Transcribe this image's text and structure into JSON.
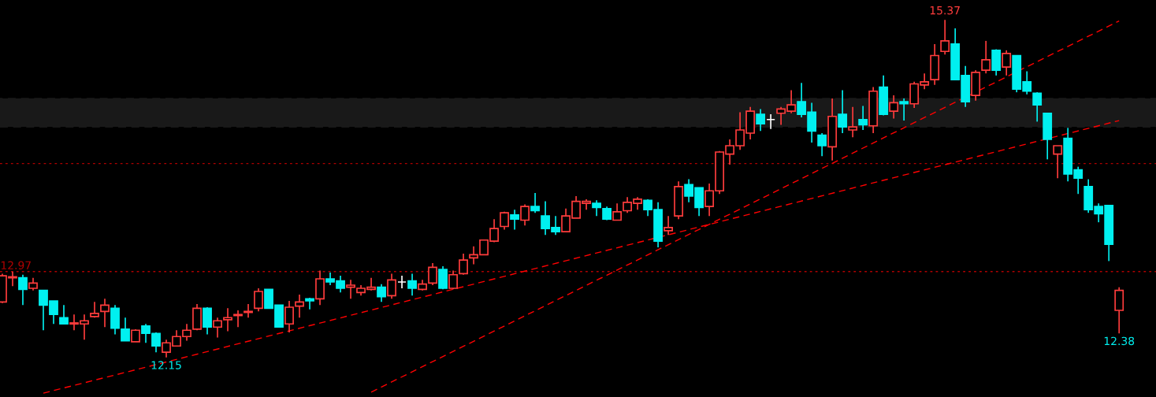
{
  "chart_data": {
    "type": "candlestick",
    "categories": [
      null,
      null,
      null,
      null,
      null,
      null,
      null,
      null,
      null,
      null,
      null,
      null,
      null,
      null,
      null,
      null,
      null,
      null,
      null,
      null,
      null,
      null,
      null,
      null,
      null,
      null,
      null,
      null,
      null,
      null,
      null,
      null,
      null,
      null,
      null,
      null,
      null,
      null,
      null,
      null,
      null,
      null,
      null,
      null,
      null,
      null,
      null,
      null,
      null,
      null,
      null,
      null,
      null,
      null,
      null,
      null,
      null,
      null,
      null,
      null,
      null,
      null,
      null,
      null,
      null,
      null,
      null,
      null,
      null,
      null,
      null,
      null,
      null,
      null,
      null,
      null,
      null,
      null,
      null,
      null,
      null,
      null,
      null,
      null,
      null,
      null,
      null,
      null,
      null,
      null,
      null,
      null,
      null,
      null,
      null,
      null,
      null,
      null,
      null,
      null,
      null,
      null,
      null,
      null,
      null,
      null,
      null,
      null,
      null,
      null
    ],
    "ohlc": [
      [
        12.68,
        12.95,
        12.67,
        12.93
      ],
      [
        12.91,
        12.97,
        12.83,
        12.92
      ],
      [
        12.91,
        12.94,
        12.65,
        12.8
      ],
      [
        12.81,
        12.91,
        12.79,
        12.86
      ],
      [
        12.79,
        12.79,
        12.41,
        12.65
      ],
      [
        12.69,
        12.69,
        12.47,
        12.56
      ],
      [
        12.53,
        12.65,
        12.47,
        12.47
      ],
      [
        12.47,
        12.56,
        12.41,
        12.48
      ],
      [
        12.47,
        12.56,
        12.32,
        12.5
      ],
      [
        12.54,
        12.68,
        12.53,
        12.57
      ],
      [
        12.59,
        12.71,
        12.44,
        12.65
      ],
      [
        12.62,
        12.65,
        12.37,
        12.43
      ],
      [
        12.42,
        12.53,
        12.31,
        12.31
      ],
      [
        12.3,
        12.42,
        12.3,
        12.41
      ],
      [
        12.45,
        12.47,
        12.29,
        12.38
      ],
      [
        12.38,
        12.39,
        12.2,
        12.26
      ],
      [
        12.2,
        12.32,
        12.15,
        12.29
      ],
      [
        12.26,
        12.41,
        12.26,
        12.35
      ],
      [
        12.35,
        12.47,
        12.31,
        12.41
      ],
      [
        12.42,
        12.66,
        12.41,
        12.62
      ],
      [
        12.62,
        12.63,
        12.37,
        12.44
      ],
      [
        12.44,
        12.53,
        12.34,
        12.5
      ],
      [
        12.51,
        12.62,
        12.4,
        12.53
      ],
      [
        12.55,
        12.6,
        12.44,
        12.56
      ],
      [
        12.58,
        12.66,
        12.53,
        12.59
      ],
      [
        12.62,
        12.81,
        12.59,
        12.78
      ],
      [
        12.8,
        12.8,
        12.62,
        12.62
      ],
      [
        12.65,
        12.65,
        12.44,
        12.44
      ],
      [
        12.47,
        12.69,
        12.39,
        12.63
      ],
      [
        12.64,
        12.75,
        12.53,
        12.68
      ],
      [
        12.71,
        12.72,
        12.61,
        12.69
      ],
      [
        12.71,
        12.98,
        12.65,
        12.9
      ],
      [
        12.9,
        12.96,
        12.84,
        12.87
      ],
      [
        12.88,
        12.93,
        12.77,
        12.81
      ],
      [
        12.82,
        12.89,
        12.71,
        12.84
      ],
      [
        12.77,
        12.84,
        12.74,
        12.81
      ],
      [
        12.8,
        12.91,
        12.79,
        12.82
      ],
      [
        12.82,
        12.85,
        12.68,
        12.73
      ],
      [
        12.74,
        12.95,
        12.71,
        12.89
      ],
      [
        12.87,
        12.93,
        12.81,
        12.87
      ],
      [
        12.88,
        12.95,
        12.74,
        12.81
      ],
      [
        12.8,
        12.89,
        12.79,
        12.85
      ],
      [
        12.86,
        13.05,
        12.84,
        13.01
      ],
      [
        12.99,
        13.02,
        12.8,
        12.81
      ],
      [
        12.81,
        12.98,
        12.8,
        12.94
      ],
      [
        12.95,
        13.14,
        12.94,
        13.08
      ],
      [
        13.1,
        13.21,
        13.04,
        13.13
      ],
      [
        13.13,
        13.27,
        13.13,
        13.27
      ],
      [
        13.26,
        13.47,
        13.25,
        13.38
      ],
      [
        13.4,
        13.54,
        13.37,
        13.53
      ],
      [
        13.51,
        13.56,
        13.37,
        13.47
      ],
      [
        13.46,
        13.61,
        13.41,
        13.59
      ],
      [
        13.59,
        13.72,
        13.53,
        13.55
      ],
      [
        13.5,
        13.64,
        13.32,
        13.38
      ],
      [
        13.39,
        13.5,
        13.32,
        13.35
      ],
      [
        13.35,
        13.57,
        13.35,
        13.5
      ],
      [
        13.48,
        13.69,
        13.48,
        13.64
      ],
      [
        13.62,
        13.66,
        13.56,
        13.64
      ],
      [
        13.62,
        13.65,
        13.5,
        13.58
      ],
      [
        13.57,
        13.59,
        13.46,
        13.47
      ],
      [
        13.46,
        13.62,
        13.46,
        13.54
      ],
      [
        13.55,
        13.68,
        13.53,
        13.63
      ],
      [
        13.62,
        13.68,
        13.56,
        13.66
      ],
      [
        13.65,
        13.66,
        13.5,
        13.56
      ],
      [
        13.56,
        13.63,
        13.2,
        13.26
      ],
      [
        13.36,
        13.5,
        13.32,
        13.39
      ],
      [
        13.5,
        13.83,
        13.47,
        13.78
      ],
      [
        13.8,
        13.85,
        13.63,
        13.69
      ],
      [
        13.77,
        13.77,
        13.5,
        13.58
      ],
      [
        13.59,
        13.81,
        13.5,
        13.74
      ],
      [
        13.74,
        14.12,
        13.71,
        14.11
      ],
      [
        14.09,
        14.23,
        13.99,
        14.17
      ],
      [
        14.17,
        14.49,
        14.13,
        14.32
      ],
      [
        14.29,
        14.54,
        14.23,
        14.5
      ],
      [
        14.47,
        14.52,
        14.31,
        14.38
      ],
      [
        14.42,
        14.47,
        14.33,
        14.42
      ],
      [
        14.48,
        14.54,
        14.37,
        14.52
      ],
      [
        14.5,
        14.7,
        14.48,
        14.56
      ],
      [
        14.59,
        14.77,
        14.44,
        14.47
      ],
      [
        14.49,
        14.58,
        14.2,
        14.31
      ],
      [
        14.27,
        14.29,
        14.07,
        14.17
      ],
      [
        14.16,
        14.62,
        14.03,
        14.45
      ],
      [
        14.47,
        14.7,
        14.29,
        14.35
      ],
      [
        14.32,
        14.54,
        14.25,
        14.35
      ],
      [
        14.42,
        14.55,
        14.32,
        14.37
      ],
      [
        14.36,
        14.73,
        14.29,
        14.69
      ],
      [
        14.73,
        14.84,
        14.46,
        14.47
      ],
      [
        14.5,
        14.65,
        14.43,
        14.58
      ],
      [
        14.59,
        14.62,
        14.41,
        14.57
      ],
      [
        14.57,
        14.78,
        14.53,
        14.76
      ],
      [
        14.75,
        14.86,
        14.71,
        14.78
      ],
      [
        14.8,
        15.14,
        14.75,
        15.03
      ],
      [
        15.07,
        15.37,
        15.04,
        15.17
      ],
      [
        15.14,
        15.29,
        14.8,
        14.8
      ],
      [
        14.84,
        14.93,
        14.54,
        14.59
      ],
      [
        14.65,
        14.89,
        14.6,
        14.87
      ],
      [
        14.89,
        15.17,
        14.86,
        14.99
      ],
      [
        15.08,
        15.09,
        14.84,
        14.89
      ],
      [
        14.92,
        15.08,
        14.84,
        15.05
      ],
      [
        15.03,
        15.03,
        14.68,
        14.71
      ],
      [
        14.78,
        14.88,
        14.66,
        14.69
      ],
      [
        14.67,
        14.68,
        14.4,
        14.56
      ],
      [
        14.48,
        14.48,
        14.04,
        14.23
      ],
      [
        14.09,
        14.17,
        13.86,
        14.17
      ],
      [
        14.24,
        14.34,
        13.83,
        13.9
      ],
      [
        13.94,
        13.97,
        13.71,
        13.86
      ],
      [
        13.78,
        13.85,
        13.53,
        13.56
      ],
      [
        13.59,
        13.62,
        13.44,
        13.52
      ],
      [
        13.6,
        13.6,
        13.07,
        13.23
      ],
      [
        12.6,
        12.82,
        12.38,
        12.79
      ]
    ],
    "colors": [
      "#ff3c3c",
      "#ff3c3c",
      "#00f0f0",
      "#ff3c3c",
      "#00f0f0",
      "#00f0f0",
      "#00f0f0",
      "#ff3c3c",
      "#ff3c3c",
      "#ff3c3c",
      "#ff3c3c",
      "#00f0f0",
      "#00f0f0",
      "#ff3c3c",
      "#00f0f0",
      "#00f0f0",
      "#ff3c3c",
      "#ff3c3c",
      "#ff3c3c",
      "#ff3c3c",
      "#00f0f0",
      "#ff3c3c",
      "#ff3c3c",
      "#ff3c3c",
      "#ff3c3c",
      "#ff3c3c",
      "#00f0f0",
      "#00f0f0",
      "#ff3c3c",
      "#ff3c3c",
      "#00f0f0",
      "#ff3c3c",
      "#00f0f0",
      "#00f0f0",
      "#ff3c3c",
      "#ff3c3c",
      "#ff3c3c",
      "#00f0f0",
      "#ff3c3c",
      "#ffffff",
      "#00f0f0",
      "#ff3c3c",
      "#ff3c3c",
      "#00f0f0",
      "#ff3c3c",
      "#ff3c3c",
      "#ff3c3c",
      "#ff3c3c",
      "#ff3c3c",
      "#ff3c3c",
      "#00f0f0",
      "#ff3c3c",
      "#00f0f0",
      "#00f0f0",
      "#00f0f0",
      "#ff3c3c",
      "#ff3c3c",
      "#ff3c3c",
      "#00f0f0",
      "#00f0f0",
      "#ff3c3c",
      "#ff3c3c",
      "#ff3c3c",
      "#00f0f0",
      "#00f0f0",
      "#ff3c3c",
      "#ff3c3c",
      "#00f0f0",
      "#00f0f0",
      "#ff3c3c",
      "#ff3c3c",
      "#ff3c3c",
      "#ff3c3c",
      "#ff3c3c",
      "#00f0f0",
      "#ffffff",
      "#ff3c3c",
      "#ff3c3c",
      "#00f0f0",
      "#00f0f0",
      "#00f0f0",
      "#ff3c3c",
      "#00f0f0",
      "#ff3c3c",
      "#00f0f0",
      "#ff3c3c",
      "#00f0f0",
      "#ff3c3c",
      "#00f0f0",
      "#ff3c3c",
      "#ff3c3c",
      "#ff3c3c",
      "#ff3c3c",
      "#00f0f0",
      "#00f0f0",
      "#ff3c3c",
      "#ff3c3c",
      "#00f0f0",
      "#ff3c3c",
      "#00f0f0",
      "#00f0f0",
      "#00f0f0",
      "#00f0f0",
      "#ff3c3c",
      "#00f0f0",
      "#00f0f0",
      "#00f0f0",
      "#00f0f0",
      "#00f0f0",
      "#ff3c3c"
    ],
    "series": [
      {
        "type": "line",
        "color": "#ff0000",
        "line_style": "dashed",
        "values": [
          null,
          null,
          null,
          null,
          11.81,
          null,
          null,
          null,
          null,
          null,
          null,
          null,
          null,
          null,
          null,
          null,
          null,
          null,
          null,
          null,
          null,
          null,
          null,
          null,
          null,
          null,
          null,
          null,
          null,
          null,
          null,
          null,
          null,
          null,
          null,
          null,
          null,
          null,
          null,
          null,
          null,
          null,
          null,
          null,
          null,
          null,
          null,
          null,
          null,
          null,
          null,
          null,
          null,
          null,
          null,
          null,
          null,
          null,
          null,
          null,
          null,
          null,
          null,
          null,
          null,
          null,
          null,
          null,
          null,
          null,
          null,
          null,
          null,
          null,
          null,
          null,
          null,
          null,
          null,
          null,
          null,
          null,
          null,
          null,
          null,
          null,
          null,
          null,
          null,
          null,
          null,
          null,
          null,
          null,
          null,
          null,
          null,
          null,
          null,
          null,
          null,
          null,
          null,
          null,
          null,
          null,
          null,
          null,
          null,
          14.41
        ]
      },
      {
        "type": "line",
        "color": "#ff0000",
        "line_style": "dashed",
        "values": [
          null,
          null,
          null,
          null,
          null,
          null,
          null,
          null,
          null,
          null,
          null,
          null,
          null,
          null,
          null,
          null,
          null,
          null,
          null,
          null,
          null,
          null,
          null,
          null,
          null,
          null,
          null,
          null,
          null,
          null,
          null,
          null,
          null,
          null,
          null,
          null,
          11.82,
          null,
          null,
          null,
          null,
          null,
          null,
          null,
          null,
          null,
          null,
          null,
          null,
          null,
          null,
          null,
          null,
          null,
          null,
          null,
          null,
          null,
          null,
          null,
          null,
          null,
          null,
          null,
          null,
          null,
          null,
          null,
          null,
          null,
          null,
          null,
          null,
          null,
          null,
          null,
          null,
          null,
          null,
          null,
          null,
          null,
          null,
          null,
          null,
          null,
          null,
          null,
          null,
          null,
          null,
          null,
          null,
          null,
          null,
          null,
          null,
          null,
          null,
          null,
          null,
          null,
          null,
          null,
          null,
          null,
          null,
          null,
          null,
          15.36
        ]
      }
    ],
    "ref_lines": [
      {
        "axis": "y",
        "value": 12.97,
        "label": "12.97",
        "color": "#b00000",
        "line_style": "dotted"
      },
      {
        "axis": "y",
        "value": 14.0,
        "color": "#b00000",
        "line_style": "dotted"
      }
    ],
    "bands": [
      {
        "axis": "y",
        "from": 14.35,
        "to": 14.62,
        "color": "#c8c8c8"
      }
    ],
    "annotations": [
      {
        "text": "15.37",
        "y": 15.37
      },
      {
        "text": "12.15",
        "y": 12.15
      },
      {
        "text": "12.38",
        "y": 12.38
      }
    ]
  }
}
